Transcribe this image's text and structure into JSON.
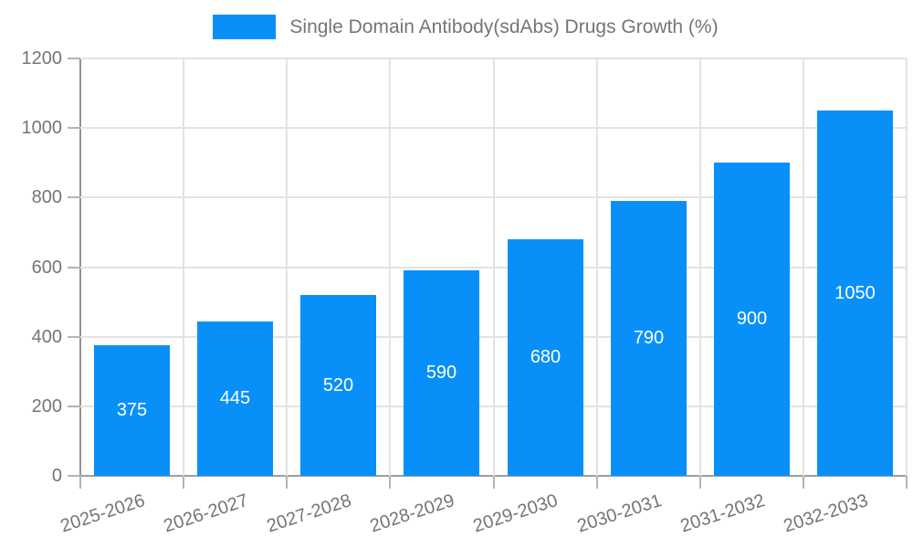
{
  "legend": {
    "swatch_icon": "legend-swatch-blue",
    "position": "top-center"
  },
  "chart_data": {
    "type": "bar",
    "title": "",
    "series_name": "Single Domain Antibody(sdAbs) Drugs Growth (%)",
    "categories": [
      "2025-2026",
      "2026-2027",
      "2027-2028",
      "2028-2029",
      "2029-2030",
      "2030-2031",
      "2031-2032",
      "2032-2033"
    ],
    "values": [
      375,
      445,
      520,
      590,
      680,
      790,
      900,
      1050
    ],
    "value_labels_shown": true,
    "xlabel": "",
    "ylabel": "",
    "ylim": [
      0,
      1200
    ],
    "yticks": [
      0,
      200,
      400,
      600,
      800,
      1000,
      1200
    ],
    "grid": true,
    "xtick_rotation_deg": -18,
    "colors": {
      "bar": "#0990f8",
      "value_label": "#ffffff",
      "tick_label": "#757575",
      "legend_text": "#757575",
      "gridline": "#e3e3e3",
      "axis": "#9e9e9e",
      "background": "#ffffff"
    }
  }
}
